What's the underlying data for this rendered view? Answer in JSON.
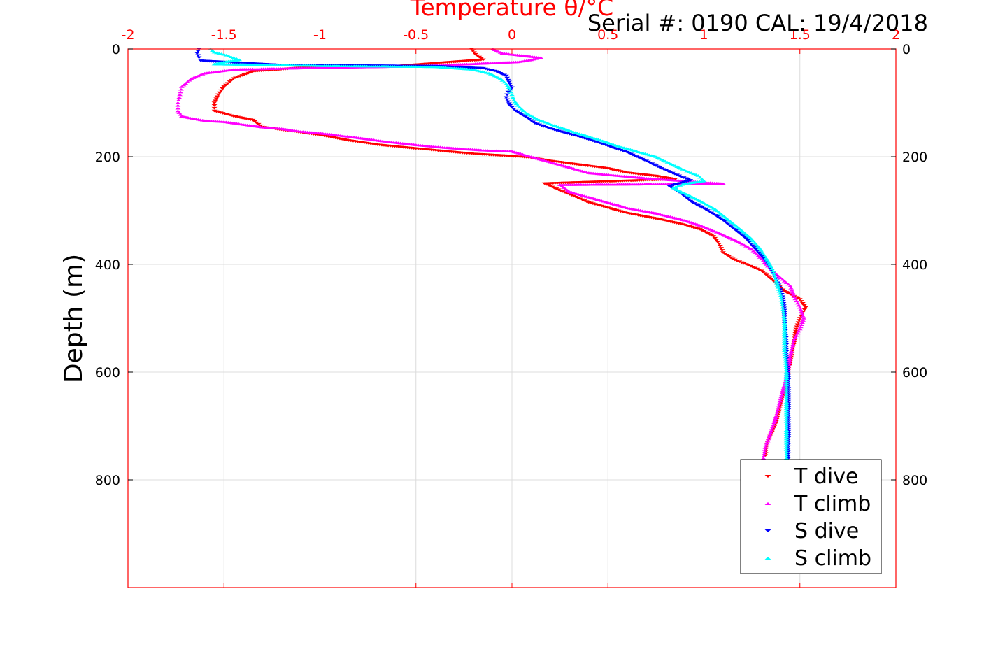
{
  "chart_data": {
    "type": "scatter",
    "title": "Temperature θ/°C",
    "annotation": "Serial #: 0190  CAL: 19/4/2018",
    "xlabel": "Temperature θ/°C",
    "ylabel": "Depth (m)",
    "xlim": [
      -2,
      2
    ],
    "ylim": [
      0,
      1000
    ],
    "y_reversed": true,
    "x_ticks": [
      "-2",
      "-1.5",
      "-1",
      "-0.5",
      "0",
      "0.5",
      "1",
      "1.5",
      "2"
    ],
    "y_ticks": [
      "0",
      "200",
      "400",
      "600",
      "800"
    ],
    "grid": true,
    "legend_position": "bottom-right",
    "colors": {
      "axis": "#ff0000",
      "text": "#000000",
      "grid": "#dcdcdc"
    },
    "series": [
      {
        "name": "T dive",
        "marker": "triangle-down",
        "color": "#ff0000",
        "points": [
          [
            -0.21,
            0
          ],
          [
            -0.19,
            10
          ],
          [
            -0.15,
            20
          ],
          [
            -0.6,
            32
          ],
          [
            -1.1,
            35
          ],
          [
            -1.35,
            42
          ],
          [
            -1.45,
            55
          ],
          [
            -1.5,
            70
          ],
          [
            -1.53,
            85
          ],
          [
            -1.55,
            100
          ],
          [
            -1.55,
            115
          ],
          [
            -1.45,
            125
          ],
          [
            -1.35,
            132
          ],
          [
            -1.3,
            145
          ],
          [
            -1.2,
            150
          ],
          [
            -1.0,
            160
          ],
          [
            -0.85,
            170
          ],
          [
            -0.7,
            178
          ],
          [
            -0.5,
            185
          ],
          [
            -0.35,
            190
          ],
          [
            -0.2,
            195
          ],
          [
            -0.05,
            198
          ],
          [
            0.1,
            202
          ],
          [
            0.2,
            208
          ],
          [
            0.35,
            215
          ],
          [
            0.5,
            222
          ],
          [
            0.6,
            230
          ],
          [
            0.75,
            236
          ],
          [
            0.85,
            242
          ],
          [
            0.17,
            250
          ],
          [
            0.22,
            258
          ],
          [
            0.3,
            270
          ],
          [
            0.4,
            285
          ],
          [
            0.5,
            295
          ],
          [
            0.6,
            305
          ],
          [
            0.75,
            315
          ],
          [
            0.88,
            325
          ],
          [
            0.98,
            335
          ],
          [
            1.05,
            348
          ],
          [
            1.08,
            362
          ],
          [
            1.1,
            378
          ],
          [
            1.15,
            390
          ],
          [
            1.22,
            400
          ],
          [
            1.3,
            412
          ],
          [
            1.36,
            430
          ],
          [
            1.42,
            450
          ],
          [
            1.5,
            465
          ],
          [
            1.53,
            480
          ],
          [
            1.5,
            500
          ],
          [
            1.48,
            520
          ],
          [
            1.47,
            545
          ],
          [
            1.45,
            580
          ],
          [
            1.43,
            620
          ],
          [
            1.4,
            660
          ],
          [
            1.37,
            700
          ],
          [
            1.33,
            730
          ],
          [
            1.32,
            755
          ]
        ]
      },
      {
        "name": "T climb",
        "marker": "triangle-up",
        "color": "#ff00ff",
        "points": [
          [
            -0.1,
            0
          ],
          [
            -0.05,
            8
          ],
          [
            0.05,
            12
          ],
          [
            0.15,
            16
          ],
          [
            0.1,
            20
          ],
          [
            0.03,
            24
          ],
          [
            -0.5,
            32
          ],
          [
            -1.05,
            35
          ],
          [
            -1.45,
            38
          ],
          [
            -1.6,
            45
          ],
          [
            -1.67,
            55
          ],
          [
            -1.72,
            70
          ],
          [
            -1.73,
            85
          ],
          [
            -1.74,
            100
          ],
          [
            -1.74,
            115
          ],
          [
            -1.72,
            125
          ],
          [
            -1.6,
            133
          ],
          [
            -1.5,
            135
          ],
          [
            -1.3,
            145
          ],
          [
            -1.2,
            148
          ],
          [
            -1.1,
            153
          ],
          [
            -0.95,
            158
          ],
          [
            -0.8,
            165
          ],
          [
            -0.65,
            172
          ],
          [
            -0.5,
            178
          ],
          [
            -0.35,
            183
          ],
          [
            -0.15,
            188
          ],
          [
            0.0,
            190
          ],
          [
            0.1,
            200
          ],
          [
            0.2,
            210
          ],
          [
            0.3,
            220
          ],
          [
            0.4,
            230
          ],
          [
            0.55,
            235
          ],
          [
            0.7,
            240
          ],
          [
            0.9,
            245
          ],
          [
            1.1,
            250
          ],
          [
            0.25,
            252
          ],
          [
            0.3,
            265
          ],
          [
            0.4,
            275
          ],
          [
            0.5,
            285
          ],
          [
            0.6,
            295
          ],
          [
            0.75,
            305
          ],
          [
            0.9,
            318
          ],
          [
            1.0,
            330
          ],
          [
            1.1,
            345
          ],
          [
            1.18,
            358
          ],
          [
            1.25,
            372
          ],
          [
            1.3,
            390
          ],
          [
            1.35,
            410
          ],
          [
            1.4,
            425
          ],
          [
            1.45,
            440
          ],
          [
            1.47,
            460
          ],
          [
            1.5,
            480
          ],
          [
            1.52,
            500
          ],
          [
            1.5,
            520
          ],
          [
            1.47,
            540
          ],
          [
            1.45,
            570
          ],
          [
            1.43,
            610
          ],
          [
            1.4,
            650
          ],
          [
            1.37,
            690
          ],
          [
            1.34,
            720
          ],
          [
            1.32,
            740
          ],
          [
            1.31,
            760
          ]
        ]
      },
      {
        "name": "S dive",
        "marker": "triangle-down",
        "color": "#0000ff",
        "points": [
          [
            -1.63,
            0
          ],
          [
            -1.64,
            8
          ],
          [
            -1.63,
            16
          ],
          [
            -1.62,
            22
          ],
          [
            -1.2,
            30
          ],
          [
            -0.8,
            31
          ],
          [
            -0.4,
            32
          ],
          [
            -0.15,
            36
          ],
          [
            -0.08,
            42
          ],
          [
            -0.03,
            50
          ],
          [
            -0.02,
            58
          ],
          [
            -0.01,
            65
          ],
          [
            0.0,
            72
          ],
          [
            -0.02,
            80
          ],
          [
            -0.03,
            90
          ],
          [
            -0.02,
            98
          ],
          [
            -0.01,
            105
          ],
          [
            0.02,
            115
          ],
          [
            0.08,
            128
          ],
          [
            0.12,
            138
          ],
          [
            0.2,
            148
          ],
          [
            0.3,
            158
          ],
          [
            0.4,
            168
          ],
          [
            0.5,
            180
          ],
          [
            0.6,
            192
          ],
          [
            0.7,
            208
          ],
          [
            0.78,
            222
          ],
          [
            0.86,
            234
          ],
          [
            0.93,
            244
          ],
          [
            0.82,
            255
          ],
          [
            0.88,
            268
          ],
          [
            0.94,
            285
          ],
          [
            1.02,
            300
          ],
          [
            1.1,
            318
          ],
          [
            1.16,
            335
          ],
          [
            1.22,
            352
          ],
          [
            1.27,
            372
          ],
          [
            1.32,
            392
          ],
          [
            1.36,
            415
          ],
          [
            1.39,
            438
          ],
          [
            1.41,
            460
          ],
          [
            1.42,
            485
          ],
          [
            1.42,
            510
          ],
          [
            1.43,
            540
          ],
          [
            1.43,
            575
          ],
          [
            1.44,
            610
          ],
          [
            1.44,
            650
          ],
          [
            1.44,
            690
          ],
          [
            1.44,
            730
          ],
          [
            1.44,
            760
          ]
        ]
      },
      {
        "name": "S climb",
        "marker": "triangle-up",
        "color": "#00ffff",
        "points": [
          [
            -1.57,
            0
          ],
          [
            -1.55,
            6
          ],
          [
            -1.5,
            10
          ],
          [
            -1.45,
            16
          ],
          [
            -1.42,
            20
          ],
          [
            -1.5,
            24
          ],
          [
            -1.55,
            28
          ],
          [
            -1.0,
            31
          ],
          [
            -0.7,
            32
          ],
          [
            -0.4,
            33
          ],
          [
            -0.2,
            38
          ],
          [
            -0.12,
            45
          ],
          [
            -0.06,
            55
          ],
          [
            -0.03,
            65
          ],
          [
            -0.01,
            75
          ],
          [
            0.0,
            85
          ],
          [
            0.01,
            95
          ],
          [
            0.03,
            105
          ],
          [
            0.07,
            118
          ],
          [
            0.13,
            130
          ],
          [
            0.22,
            142
          ],
          [
            0.33,
            155
          ],
          [
            0.45,
            168
          ],
          [
            0.55,
            180
          ],
          [
            0.65,
            190
          ],
          [
            0.75,
            200
          ],
          [
            0.82,
            212
          ],
          [
            0.9,
            225
          ],
          [
            0.97,
            235
          ],
          [
            1.0,
            245
          ],
          [
            0.9,
            250
          ],
          [
            0.84,
            258
          ],
          [
            0.9,
            268
          ],
          [
            0.98,
            282
          ],
          [
            1.06,
            298
          ],
          [
            1.12,
            315
          ],
          [
            1.18,
            332
          ],
          [
            1.24,
            350
          ],
          [
            1.29,
            370
          ],
          [
            1.33,
            392
          ],
          [
            1.36,
            412
          ],
          [
            1.38,
            435
          ],
          [
            1.4,
            458
          ],
          [
            1.41,
            480
          ],
          [
            1.42,
            505
          ],
          [
            1.42,
            530
          ],
          [
            1.42,
            560
          ],
          [
            1.43,
            600
          ],
          [
            1.43,
            640
          ],
          [
            1.43,
            680
          ],
          [
            1.43,
            720
          ],
          [
            1.43,
            760
          ]
        ]
      }
    ]
  }
}
